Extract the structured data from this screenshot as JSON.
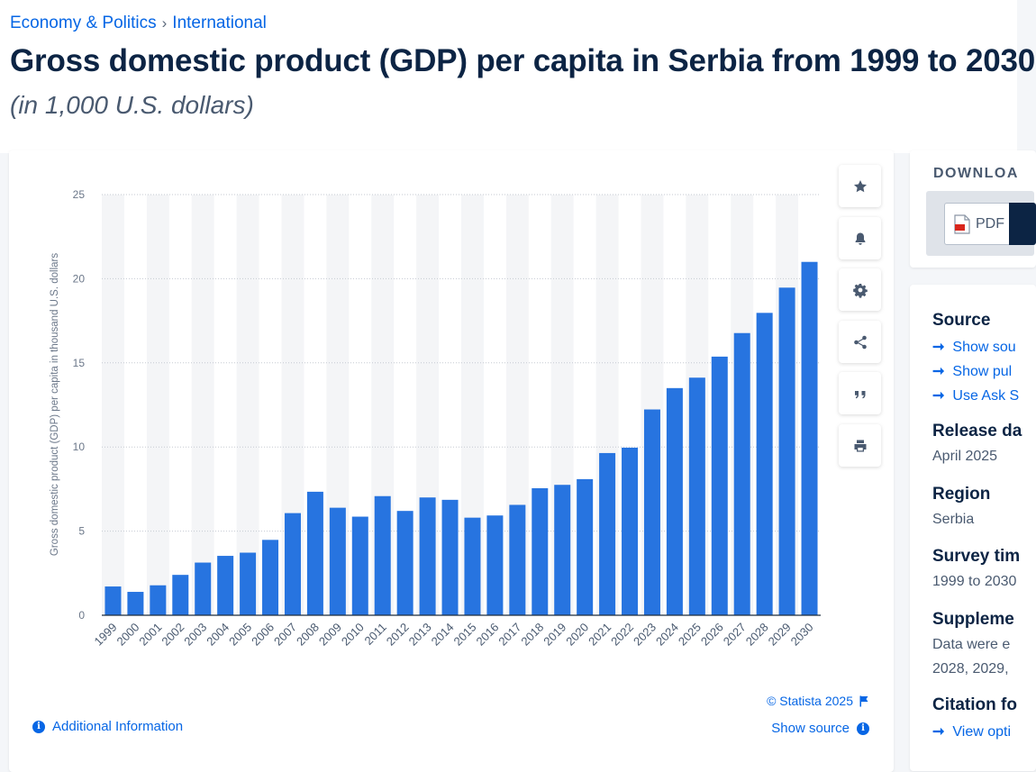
{
  "breadcrumb": {
    "part1": "Economy & Politics",
    "sep": "›",
    "part2": "International"
  },
  "title": "Gross domestic product (GDP) per capita in Serbia from 1999 to 2030",
  "subtitle": "(in 1,000 U.S. dollars)",
  "tools": [
    "star-icon",
    "bell-icon",
    "gear-icon",
    "share-icon",
    "quote-icon",
    "print-icon"
  ],
  "credit": "© Statista 2025",
  "show_source": "Show source",
  "additional_info": "Additional Information",
  "download": {
    "title": "DOWNLOA",
    "pdf_label": "PDF"
  },
  "info": {
    "source_heading": "Source",
    "source_links": [
      "Show sou",
      "Show pul",
      "Use Ask S"
    ],
    "release_heading": "Release da",
    "release_value": "April 2025",
    "region_heading": "Region",
    "region_value": "Serbia",
    "survey_heading": "Survey tim",
    "survey_value": "1999 to 2030",
    "supp_heading": "Suppleme",
    "supp_line1": "Data were e",
    "supp_line2": "2028, 2029,",
    "citation_heading": "Citation fo",
    "citation_link": "View opti"
  },
  "colors": {
    "bar": "#2774e0",
    "accent": "#0666e5",
    "text": "#0c2444"
  },
  "chart_data": {
    "type": "bar",
    "categories": [
      "1999",
      "2000",
      "2001",
      "2002",
      "2003",
      "2004",
      "2005",
      "2006",
      "2007",
      "2008",
      "2009",
      "2010",
      "2011",
      "2012",
      "2013",
      "2014",
      "2015",
      "2016",
      "2017",
      "2018",
      "2019",
      "2020",
      "2021",
      "2022",
      "2023",
      "2024",
      "2025",
      "2026",
      "2027",
      "2028",
      "2029",
      "2030"
    ],
    "values": [
      1.71,
      1.39,
      1.78,
      2.4,
      3.13,
      3.53,
      3.72,
      4.48,
      6.07,
      7.34,
      6.39,
      5.86,
      7.08,
      6.2,
      7.0,
      6.86,
      5.8,
      5.93,
      6.56,
      7.55,
      7.75,
      8.09,
      9.64,
      9.96,
      12.23,
      13.5,
      14.12,
      15.37,
      16.77,
      17.97,
      19.47,
      21.0
    ],
    "title": "",
    "xlabel": "",
    "ylabel": "Gross domestic product (GDP) per capita in thousand U.S. dollars",
    "ylim": [
      0,
      25
    ],
    "yticks": [
      0,
      5,
      10,
      15,
      20,
      25
    ],
    "grid": true
  }
}
